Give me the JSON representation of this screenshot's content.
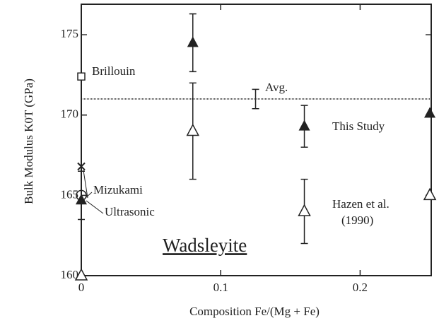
{
  "chart_data": {
    "type": "scatter",
    "xlabel": "Composition  Fe/(Mg + Fe)",
    "ylabel": "Bulk Modulus K0T (GPa)",
    "xlim": [
      0,
      0.251
    ],
    "ylim": [
      160,
      176.9
    ],
    "xticks": [
      0,
      0.1,
      0.2
    ],
    "yticks": [
      160,
      165,
      170,
      175
    ],
    "reference_line": 171,
    "color": "#222222",
    "series": [
      {
        "marker": "filled-triangle",
        "x": [
          0,
          0.08,
          0.16,
          0.25
        ],
        "values": [
          164.7,
          174.5,
          169.3,
          170.1
        ],
        "errors": [
          null,
          1.8,
          1.3,
          null
        ]
      },
      {
        "marker": "open-triangle",
        "x": [
          0,
          0.08,
          0.16,
          0.25
        ],
        "values": [
          160,
          169,
          164,
          165
        ],
        "errors": [
          null,
          3,
          2,
          null
        ]
      },
      {
        "marker": "open-square",
        "x": [
          0
        ],
        "values": [
          172.4
        ],
        "errors": [
          null
        ]
      },
      {
        "marker": "none",
        "x": [
          0.125
        ],
        "values": [
          171
        ],
        "errors": [
          0.6
        ]
      },
      {
        "marker": "cross",
        "x": [
          0
        ],
        "values": [
          166.8
        ],
        "errors": [
          null
        ]
      },
      {
        "marker": "circle",
        "x": [
          0
        ],
        "values": [
          165
        ],
        "errors": [
          1.5
        ]
      }
    ],
    "annotations": [
      "Brillouin",
      "Avg.",
      "This Study",
      "Mizukami",
      "Ultrasonic",
      "Hazen et al.",
      "(1990)",
      "Wadsleyite"
    ]
  }
}
